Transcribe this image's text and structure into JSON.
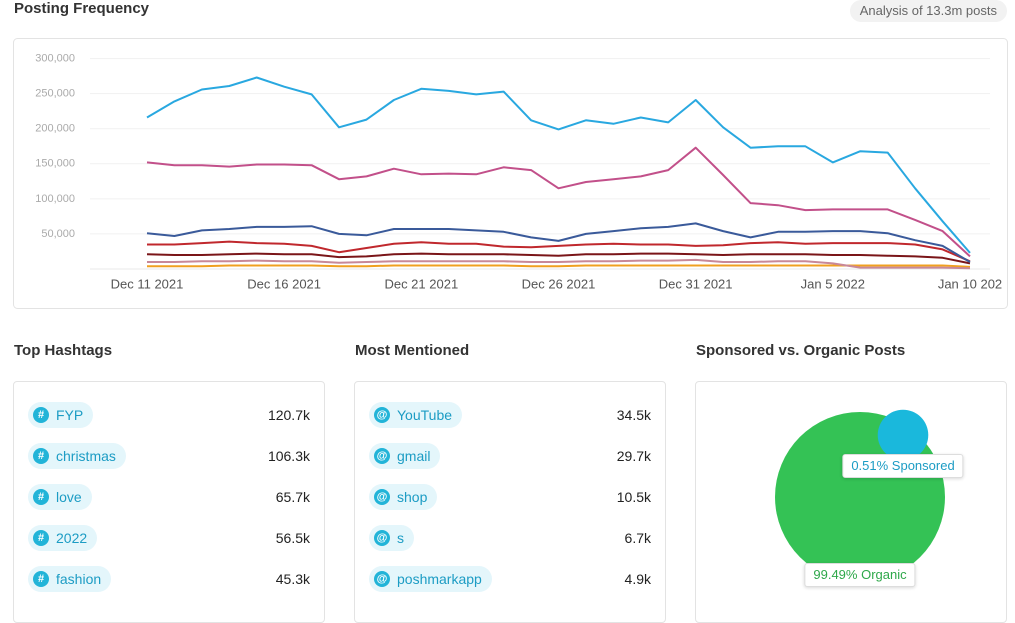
{
  "header": {
    "badge": "Analysis of 13.3m posts"
  },
  "chart_data": [
    {
      "type": "line",
      "title": "Posting Frequency",
      "categories": [
        "Dec 11 2021",
        null,
        null,
        null,
        null,
        "Dec 16 2021",
        null,
        null,
        null,
        null,
        "Dec 21 2021",
        null,
        null,
        null,
        null,
        "Dec 26 2021",
        null,
        null,
        null,
        null,
        "Dec 31 2021",
        null,
        null,
        null,
        null,
        "Jan 5 2022",
        null,
        null,
        null,
        null,
        "Jan 10 202"
      ],
      "ylim": [
        0,
        300000
      ],
      "yticks": [
        {
          "value": 50000,
          "label": "50,000"
        },
        {
          "value": 100000,
          "label": "100,000"
        },
        {
          "value": 150000,
          "label": "150,000"
        },
        {
          "value": 200000,
          "label": "200,000"
        },
        {
          "value": 250000,
          "label": "250,000"
        },
        {
          "value": 300000,
          "label": "300,000"
        }
      ],
      "grid": true,
      "series": [
        {
          "color": "#29a8e0",
          "values": [
            216000,
            239000,
            256000,
            261000,
            273000,
            260000,
            249000,
            202000,
            213000,
            241000,
            257000,
            254000,
            249000,
            253000,
            212000,
            199000,
            212000,
            207000,
            216000,
            209000,
            241000,
            202000,
            173000,
            175000,
            175000,
            152000,
            168000,
            166000,
            115000,
            68000,
            23000
          ]
        },
        {
          "color": "#c2508a",
          "values": [
            152000,
            148000,
            148000,
            146000,
            149000,
            149000,
            148000,
            128000,
            132000,
            143000,
            135000,
            136000,
            135000,
            145000,
            141000,
            115000,
            124000,
            128000,
            132000,
            141000,
            173000,
            134000,
            94000,
            91000,
            84000,
            85000,
            85000,
            85000,
            70000,
            54000,
            18000
          ]
        },
        {
          "color": "#3a5a9a",
          "values": [
            51000,
            47000,
            55000,
            57000,
            60000,
            60000,
            61000,
            50000,
            48000,
            57000,
            57000,
            57000,
            55000,
            53000,
            45000,
            40000,
            50000,
            54000,
            58000,
            60000,
            65000,
            54000,
            45000,
            53000,
            53000,
            54000,
            54000,
            51000,
            41000,
            33000,
            10000
          ]
        },
        {
          "color": "#c0282d",
          "values": [
            35000,
            35000,
            37000,
            39000,
            37000,
            36000,
            33000,
            24000,
            30000,
            36000,
            38000,
            36000,
            36000,
            32000,
            31000,
            33000,
            35000,
            36000,
            35000,
            35000,
            33000,
            34000,
            37000,
            38000,
            36000,
            37000,
            37000,
            37000,
            35000,
            28000,
            11000
          ]
        },
        {
          "color": "#7a1518",
          "values": [
            21000,
            20000,
            20000,
            21000,
            22000,
            21000,
            21000,
            17000,
            18000,
            21000,
            22000,
            21000,
            21000,
            21000,
            20000,
            19000,
            21000,
            21000,
            22000,
            22000,
            21000,
            20000,
            21000,
            21000,
            21000,
            20000,
            20000,
            19000,
            18000,
            16000,
            8000
          ]
        },
        {
          "color": "#c88898",
          "values": [
            10000,
            10000,
            11000,
            11000,
            12000,
            11000,
            11000,
            9000,
            10000,
            11000,
            11000,
            11000,
            11000,
            11000,
            10000,
            10000,
            11000,
            11000,
            12000,
            12000,
            13000,
            10000,
            10000,
            11000,
            11000,
            8000,
            2000,
            2000,
            2000,
            2000,
            1000
          ]
        },
        {
          "color": "#f0a020",
          "values": [
            4000,
            4000,
            4000,
            5000,
            5000,
            5000,
            5000,
            4000,
            4000,
            5000,
            5000,
            5000,
            5000,
            5000,
            4000,
            4000,
            5000,
            5000,
            5000,
            5000,
            5000,
            5000,
            5000,
            5000,
            5000,
            5000,
            5000,
            5000,
            5000,
            5000,
            3000
          ]
        }
      ]
    },
    {
      "type": "bubble",
      "title": "Sponsored vs. Organic Posts",
      "values": [
        0.51,
        99.49
      ],
      "value_labels": [
        "0.51% Sponsored",
        "99.49% Organic"
      ],
      "colors": [
        "#1ab8dc",
        "#34c255"
      ]
    }
  ],
  "hashtags": {
    "title": "Top Hashtags",
    "rows": [
      [
        "FYP",
        "120.7k"
      ],
      [
        "christmas",
        "106.3k"
      ],
      [
        "love",
        "65.7k"
      ],
      [
        "2022",
        "56.5k"
      ],
      [
        "fashion",
        "45.3k"
      ]
    ]
  },
  "mentions": {
    "title": "Most Mentioned",
    "rows": [
      [
        "YouTube",
        "34.5k"
      ],
      [
        "gmail",
        "29.7k"
      ],
      [
        "shop",
        "10.5k"
      ],
      [
        "s",
        "6.7k"
      ],
      [
        "poshmarkapp",
        "4.9k"
      ]
    ]
  }
}
